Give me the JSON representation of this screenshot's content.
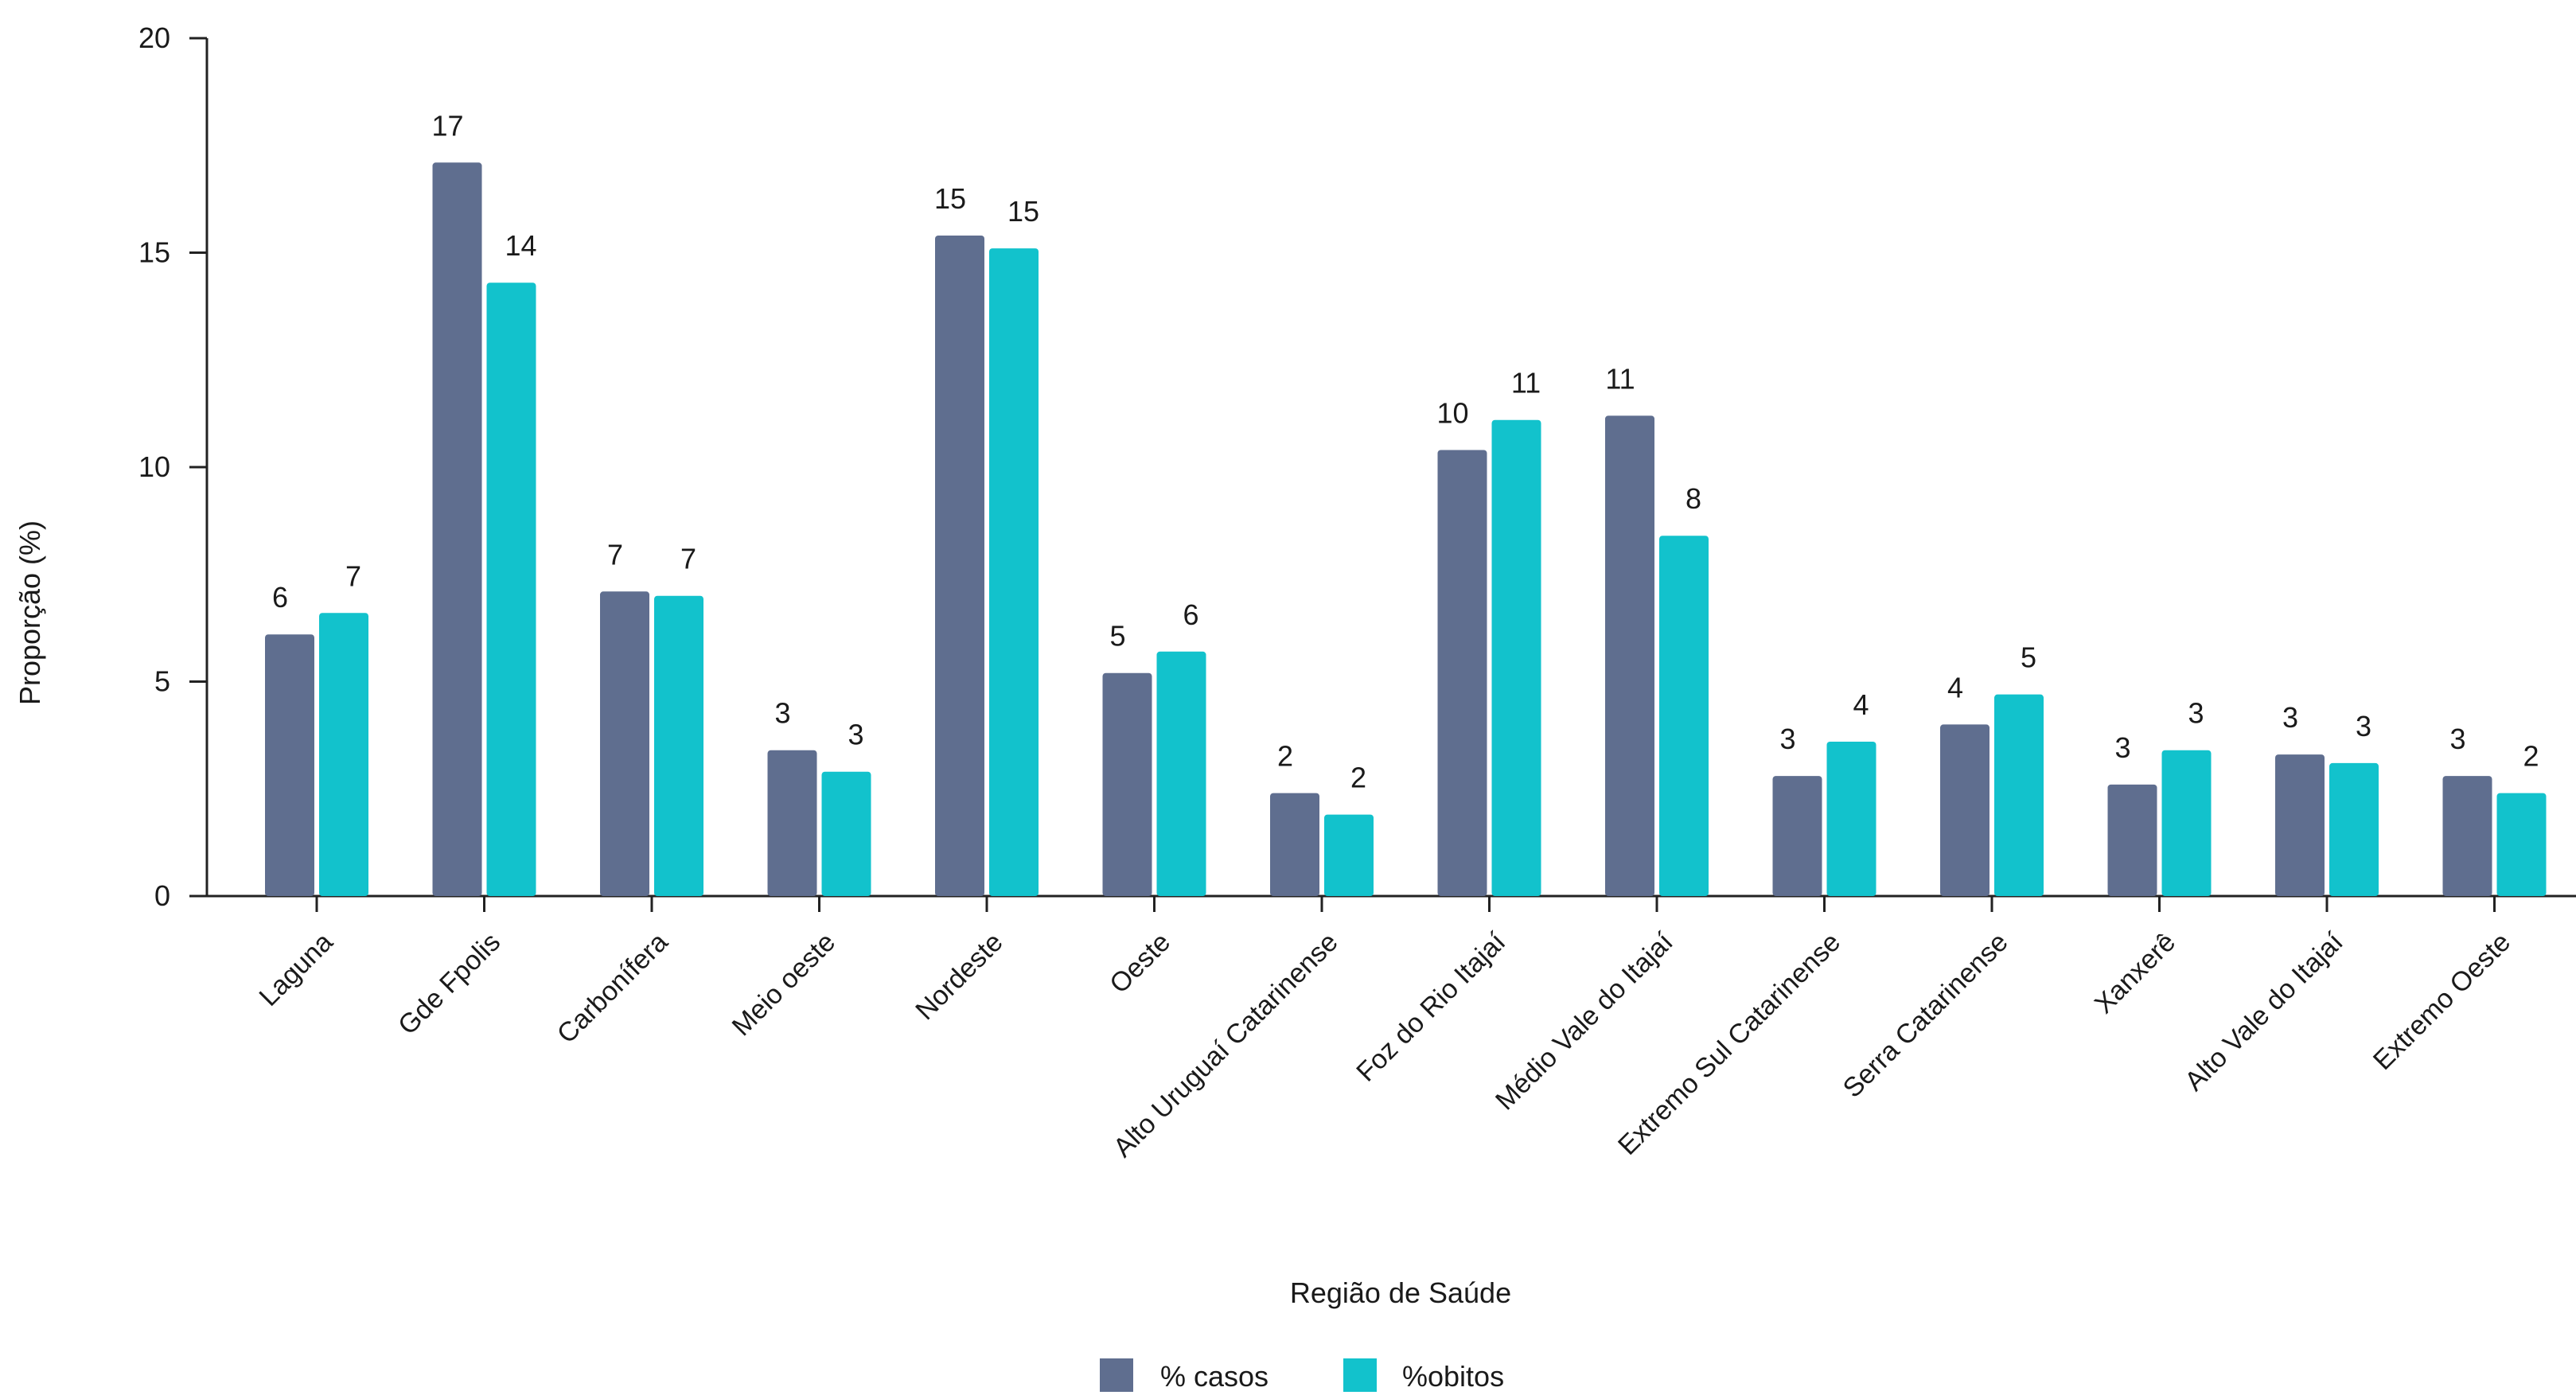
{
  "chart_data": {
    "type": "bar",
    "xlabel": "Região de Saúde",
    "ylabel": "Proporção (%)",
    "ylim": [
      0,
      20
    ],
    "yticks": [
      0,
      5,
      10,
      15,
      20
    ],
    "grid": false,
    "legend_position": "bottom-center",
    "categories": [
      "Laguna",
      "Gde Fpolis",
      "Carbonífera",
      "Meio oeste",
      "Nordeste",
      "Oeste",
      "Alto Uruguaí Catarinense",
      "Foz do Rio Itajaí",
      "Médio Vale do Itajaí",
      "Extremo Sul Catarinense",
      "Serra Catarinense",
      "Xanxerê",
      "Alto Vale do Itajaí",
      "Extremo Oeste"
    ],
    "series": [
      {
        "name": "% casos",
        "color": "#5f6e8f",
        "values": [
          6.1,
          17.1,
          7.1,
          3.4,
          15.4,
          5.2,
          2.4,
          10.4,
          11.2,
          2.8,
          4.0,
          2.6,
          3.3,
          2.8
        ],
        "labels": [
          "6",
          "17",
          "7",
          "3",
          "15",
          "5",
          "2",
          "10",
          "11",
          "3",
          "4",
          "3",
          "3",
          "3"
        ]
      },
      {
        "name": "%obitos",
        "color": "#12c2cc",
        "values": [
          6.6,
          14.3,
          7.0,
          2.9,
          15.1,
          5.7,
          1.9,
          11.1,
          8.4,
          3.6,
          4.7,
          3.4,
          3.1,
          2.4
        ],
        "labels": [
          "7",
          "14",
          "7",
          "3",
          "15",
          "6",
          "2",
          "11",
          "8",
          "4",
          "5",
          "3",
          "3",
          "2"
        ]
      }
    ]
  }
}
